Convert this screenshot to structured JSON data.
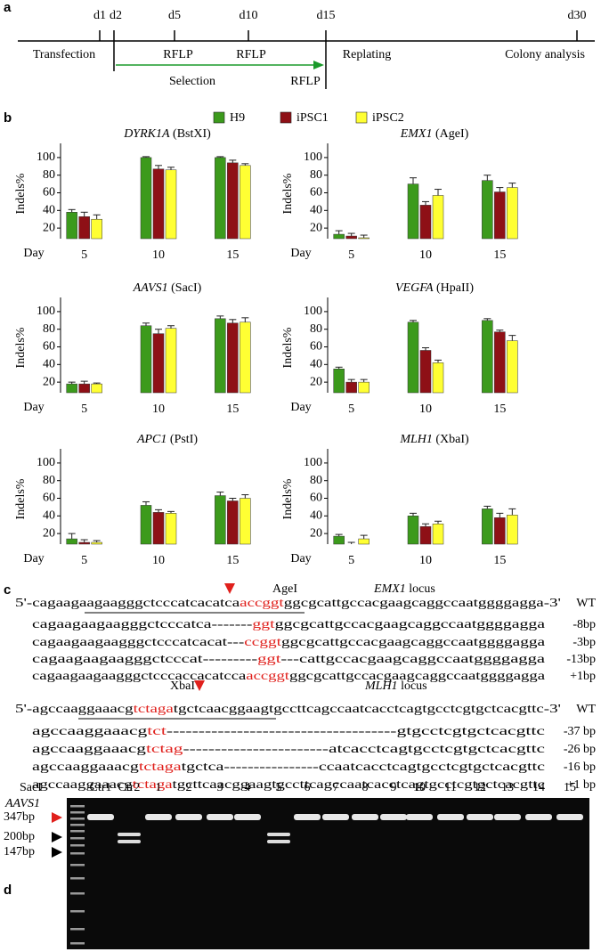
{
  "panels": [
    "a",
    "b",
    "c",
    "d"
  ],
  "timeline": {
    "days": [
      "d1",
      "d2",
      "d5",
      "d10",
      "d15",
      "d30"
    ],
    "labels": [
      "Transfection",
      "RFLP",
      "RFLP",
      "Replating",
      "Colony analysis"
    ],
    "selection": "Selection",
    "selection_end": "RFLP"
  },
  "chart_data": [
    {
      "type": "bar",
      "title": "DYRK1A",
      "title_suffix": "(BstXI)",
      "xlabel": "Day",
      "ylabel": "Indels%",
      "categories": [
        "5",
        "10",
        "15"
      ],
      "ylim": [
        8,
        110
      ],
      "yticks": [
        20,
        40,
        60,
        80,
        100
      ],
      "series": [
        {
          "name": "H9",
          "color": "#3c9a1c",
          "values": [
            38,
            100,
            100
          ],
          "errors": [
            3,
            1,
            1
          ]
        },
        {
          "name": "iPSC1",
          "color": "#8e1016",
          "values": [
            33,
            87,
            94
          ],
          "errors": [
            5,
            4,
            3
          ]
        },
        {
          "name": "iPSC2",
          "color": "#ffff33",
          "values": [
            30,
            86,
            91
          ],
          "errors": [
            5,
            3,
            2
          ]
        }
      ]
    },
    {
      "type": "bar",
      "title": "EMX1",
      "title_suffix": "(AgeI)",
      "xlabel": "Day",
      "ylabel": "Indels%",
      "categories": [
        "5",
        "10",
        "15"
      ],
      "ylim": [
        8,
        110
      ],
      "yticks": [
        20,
        40,
        60,
        80,
        100
      ],
      "series": [
        {
          "name": "H9",
          "color": "#3c9a1c",
          "values": [
            13,
            70,
            74
          ],
          "errors": [
            4,
            7,
            6
          ]
        },
        {
          "name": "iPSC1",
          "color": "#8e1016",
          "values": [
            11,
            46,
            61
          ],
          "errors": [
            3,
            4,
            5
          ]
        },
        {
          "name": "iPSC2",
          "color": "#ffff33",
          "values": [
            9,
            57,
            66
          ],
          "errors": [
            3,
            7,
            5
          ]
        }
      ]
    },
    {
      "type": "bar",
      "title": "AAVS1",
      "title_suffix": "(SacI)",
      "xlabel": "Day",
      "ylabel": "Indels%",
      "categories": [
        "5",
        "10",
        "15"
      ],
      "ylim": [
        8,
        110
      ],
      "yticks": [
        20,
        40,
        60,
        80,
        100
      ],
      "series": [
        {
          "name": "H9",
          "color": "#3c9a1c",
          "values": [
            18,
            84,
            92
          ],
          "errors": [
            2,
            3,
            3
          ]
        },
        {
          "name": "iPSC1",
          "color": "#8e1016",
          "values": [
            18,
            75,
            87
          ],
          "errors": [
            3,
            5,
            4
          ]
        },
        {
          "name": "iPSC2",
          "color": "#ffff33",
          "values": [
            18,
            81,
            88
          ],
          "errors": [
            1,
            3,
            5
          ]
        }
      ]
    },
    {
      "type": "bar",
      "title": "VEGFA",
      "title_suffix": "(HpaII)",
      "xlabel": "Day",
      "ylabel": "Indels%",
      "categories": [
        "5",
        "10",
        "15"
      ],
      "ylim": [
        8,
        110
      ],
      "yticks": [
        20,
        40,
        60,
        80,
        100
      ],
      "series": [
        {
          "name": "H9",
          "color": "#3c9a1c",
          "values": [
            35,
            88,
            90
          ],
          "errors": [
            2,
            2,
            2
          ]
        },
        {
          "name": "iPSC1",
          "color": "#8e1016",
          "values": [
            20,
            56,
            77
          ],
          "errors": [
            3,
            3,
            2
          ]
        },
        {
          "name": "iPSC2",
          "color": "#ffff33",
          "values": [
            20,
            42,
            67
          ],
          "errors": [
            3,
            3,
            6
          ]
        }
      ]
    },
    {
      "type": "bar",
      "title": "APC1",
      "title_suffix": "(PstI)",
      "xlabel": "Day",
      "ylabel": "Indels%",
      "categories": [
        "5",
        "10",
        "15"
      ],
      "ylim": [
        8,
        110
      ],
      "yticks": [
        20,
        40,
        60,
        80,
        100
      ],
      "series": [
        {
          "name": "H9",
          "color": "#3c9a1c",
          "values": [
            14,
            52,
            63
          ],
          "errors": [
            6,
            4,
            4
          ]
        },
        {
          "name": "iPSC1",
          "color": "#8e1016",
          "values": [
            10,
            44,
            57
          ],
          "errors": [
            3,
            3,
            3
          ]
        },
        {
          "name": "iPSC2",
          "color": "#ffff33",
          "values": [
            10,
            43,
            60
          ],
          "errors": [
            2,
            2,
            4
          ]
        }
      ]
    },
    {
      "type": "bar",
      "title": "MLH1",
      "title_suffix": "(XbaI)",
      "xlabel": "Day",
      "ylabel": "Indels%",
      "categories": [
        "5",
        "10",
        "15"
      ],
      "ylim": [
        8,
        110
      ],
      "yticks": [
        20,
        40,
        60,
        80,
        100
      ],
      "series": [
        {
          "name": "H9",
          "color": "#3c9a1c",
          "values": [
            17,
            40,
            48
          ],
          "errors": [
            2,
            3,
            3
          ]
        },
        {
          "name": "iPSC1",
          "color": "#8e1016",
          "values": [
            8,
            28,
            38
          ],
          "errors": [
            2,
            3,
            5
          ]
        },
        {
          "name": "iPSC2",
          "color": "#ffff33",
          "values": [
            14,
            31,
            41
          ],
          "errors": [
            4,
            3,
            7
          ]
        }
      ]
    }
  ],
  "sequences": [
    {
      "site": "AgeI",
      "gene": "EMX1",
      "locus": "locus",
      "lines": [
        {
          "parts": [
            "5'-cagaagaagaagggctcccatcacatca",
            "accggt",
            "ggcgcattgccacgaagcaggccaatggggagga-3'"
          ],
          "label": "WT"
        },
        {
          "parts": [
            "cagaagaagaagggctcccatca-------",
            "ggt",
            "ggcgcattgccacgaagcaggccaatggggagga"
          ],
          "label": "-8bp"
        },
        {
          "parts": [
            "cagaagaagaagggctcccatcacat---",
            "ccggt",
            "ggcgcattgccacgaagcaggccaatggggagga"
          ],
          "label": "-3bp"
        },
        {
          "parts": [
            "cagaagaagaagggctcccat---------",
            "ggt",
            "---cattgccacgaagcaggccaatggggagga"
          ],
          "label": "-13bp"
        },
        {
          "parts": [
            "cagaagaagaagggctcccaccacatcca",
            "accggt",
            "ggcgcattgccacgaagcaggccaatggggagga"
          ],
          "label": "+1bp"
        }
      ]
    },
    {
      "site": "XbaI",
      "gene": "MLH1",
      "locus": "locus",
      "lines": [
        {
          "parts": [
            "5'-agccaaggaaacg",
            "tctaga",
            "tgctcaacggaagtgccttcagccaatcacctcagtgcctcgtgctcacgttc-3'"
          ],
          "label": "WT"
        },
        {
          "parts": [
            "agccaaggaaacg",
            "tct",
            "------------------------------------gtgcctcgtgctcacgttc"
          ],
          "label": "-37 bp"
        },
        {
          "parts": [
            "agccaaggaaacg",
            "tctag",
            "-----------------------atcacctcagtgcctcgtgctcacgttc"
          ],
          "label": "-26 bp"
        },
        {
          "parts": [
            "agccaaggaaacg",
            "tctaga",
            "tgctca----------------ccaatcacctcagtgcctcgtgctcacgttc"
          ],
          "label": "-16 bp"
        },
        {
          "parts": [
            "agccaaggaaacg",
            "tctaga",
            "tgcttcaacggaagtgccttcagccaatcacctcagtgcctcgtgctcacgttc"
          ],
          "label": "+1 bp"
        }
      ]
    }
  ],
  "gel": {
    "enzyme": "SacI",
    "gene": "AAVS1",
    "lanes": [
      "Ctr1",
      "Ctr2",
      "1",
      "2",
      "3",
      "4",
      "5",
      "6",
      "7",
      "8",
      "9",
      "10",
      "11",
      "12",
      "13",
      "14",
      "15"
    ],
    "sizes": [
      "347bp",
      "200bp",
      "147bp"
    ]
  }
}
